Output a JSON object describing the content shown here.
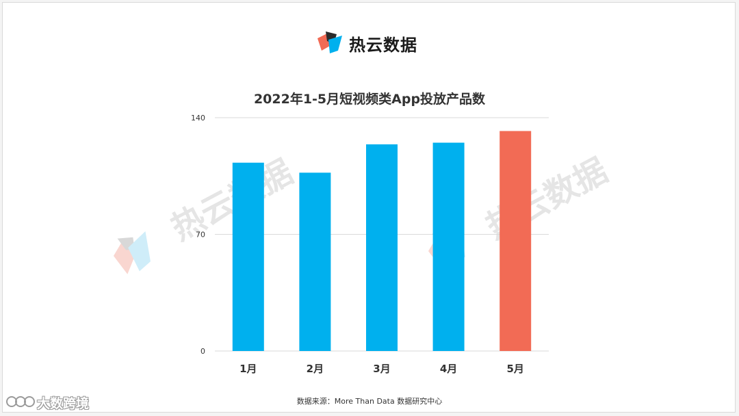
{
  "brand": {
    "name": "热云数据",
    "logo_icon": "reyun-logo-icon"
  },
  "watermark": {
    "text": "热云数据",
    "logo_icon": "reyun-logo-icon"
  },
  "colors": {
    "bar": "#00b0ee",
    "highlight_bar": "#f26b55",
    "grid": "#d9d9d9",
    "text": "#333333"
  },
  "chart_data": {
    "type": "bar",
    "title": "2022年1-5月短视频类App投放产品数",
    "categories": [
      "1月",
      "2月",
      "3月",
      "4月",
      "5月"
    ],
    "values": [
      113,
      107,
      124,
      125,
      132
    ],
    "highlight_index": 4,
    "ylim": [
      0,
      140
    ],
    "yticks": [
      0,
      70,
      140
    ],
    "grid": true,
    "xlabel": "",
    "ylabel": ""
  },
  "source": "数据来源：More Than Data 数据研究中心",
  "corner_mark": {
    "name": "大数跨境",
    "logo_icon": "dashukuajing-logo-icon"
  }
}
